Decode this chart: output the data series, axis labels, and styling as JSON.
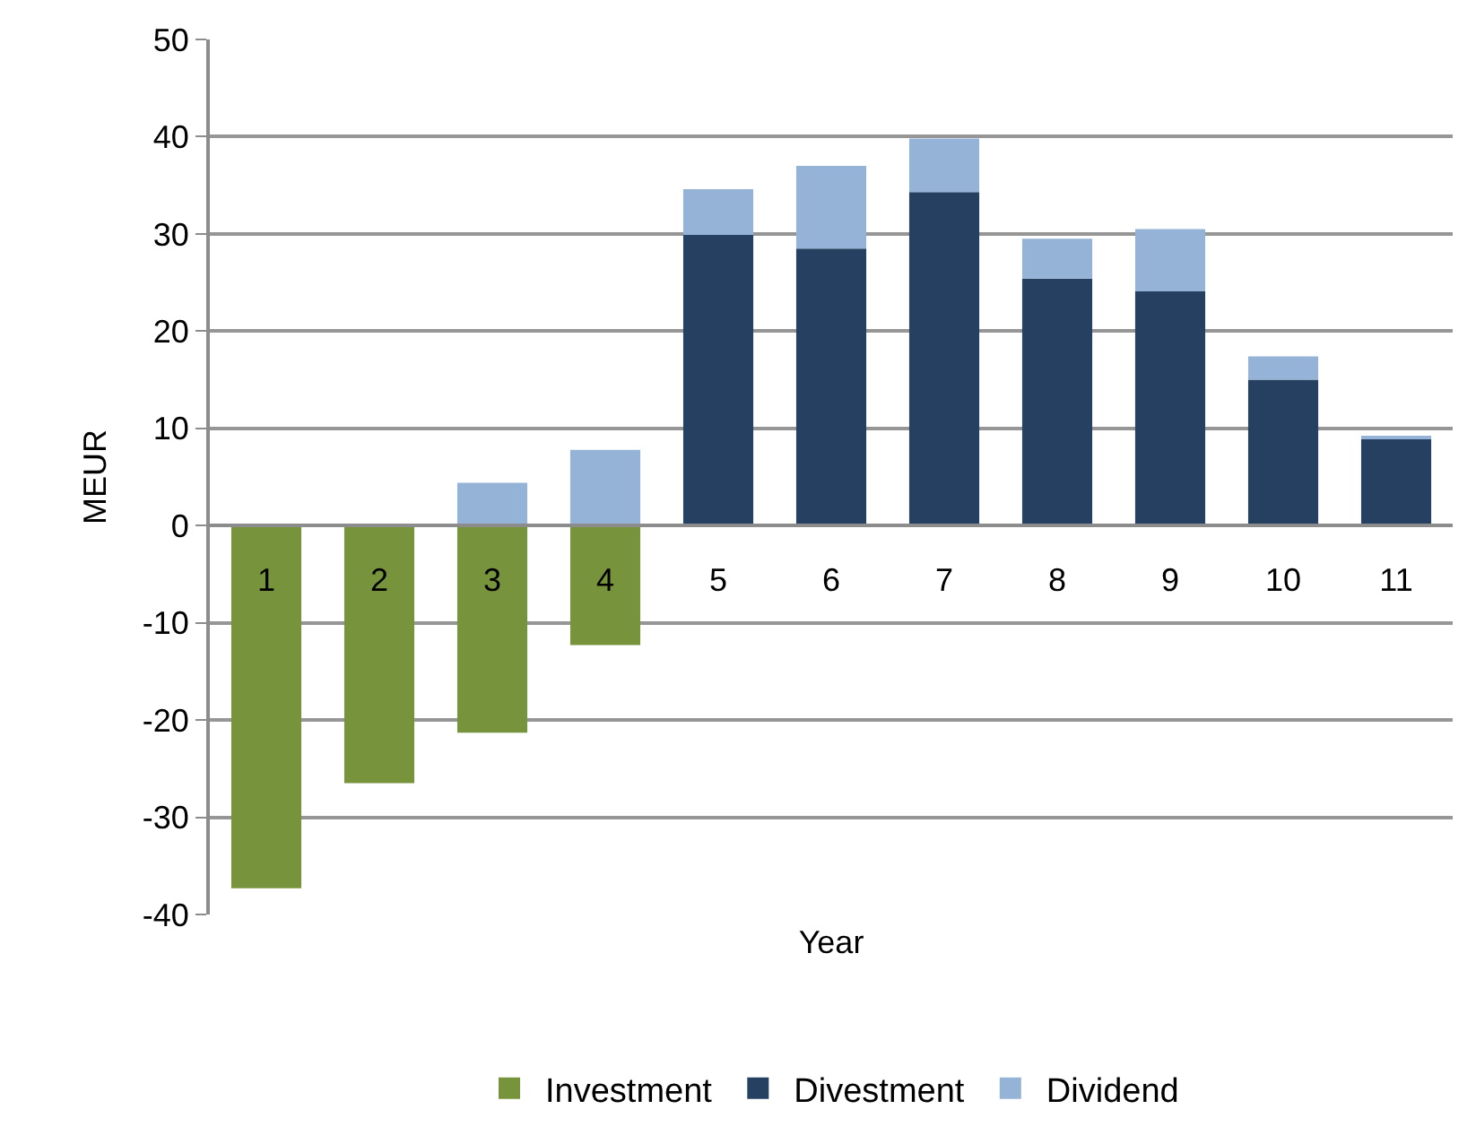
{
  "chart_data": {
    "type": "bar",
    "stacked": true,
    "xlabel": "Year",
    "ylabel": "MEUR",
    "categories": [
      "1",
      "2",
      "3",
      "4",
      "5",
      "6",
      "7",
      "8",
      "9",
      "10",
      "11"
    ],
    "series": [
      {
        "name": "Investment",
        "color": "#77933c",
        "values": [
          -37.3,
          -26.5,
          -21.3,
          -12.3,
          null,
          null,
          null,
          null,
          null,
          null,
          null
        ]
      },
      {
        "name": "Divestment",
        "color": "#254061",
        "values": [
          null,
          null,
          null,
          null,
          29.9,
          28.5,
          34.3,
          25.4,
          24.1,
          15.0,
          8.9
        ]
      },
      {
        "name": "Dividend",
        "color": "#95b3d7",
        "values": [
          null,
          null,
          4.4,
          7.8,
          4.7,
          8.5,
          5.5,
          4.1,
          6.4,
          2.4,
          0.3
        ]
      }
    ],
    "ylim": [
      -40,
      50
    ],
    "yticks": [
      -40,
      -30,
      -20,
      -10,
      0,
      10,
      20,
      30,
      40,
      50
    ],
    "grid": "y",
    "legend": "bottom"
  }
}
